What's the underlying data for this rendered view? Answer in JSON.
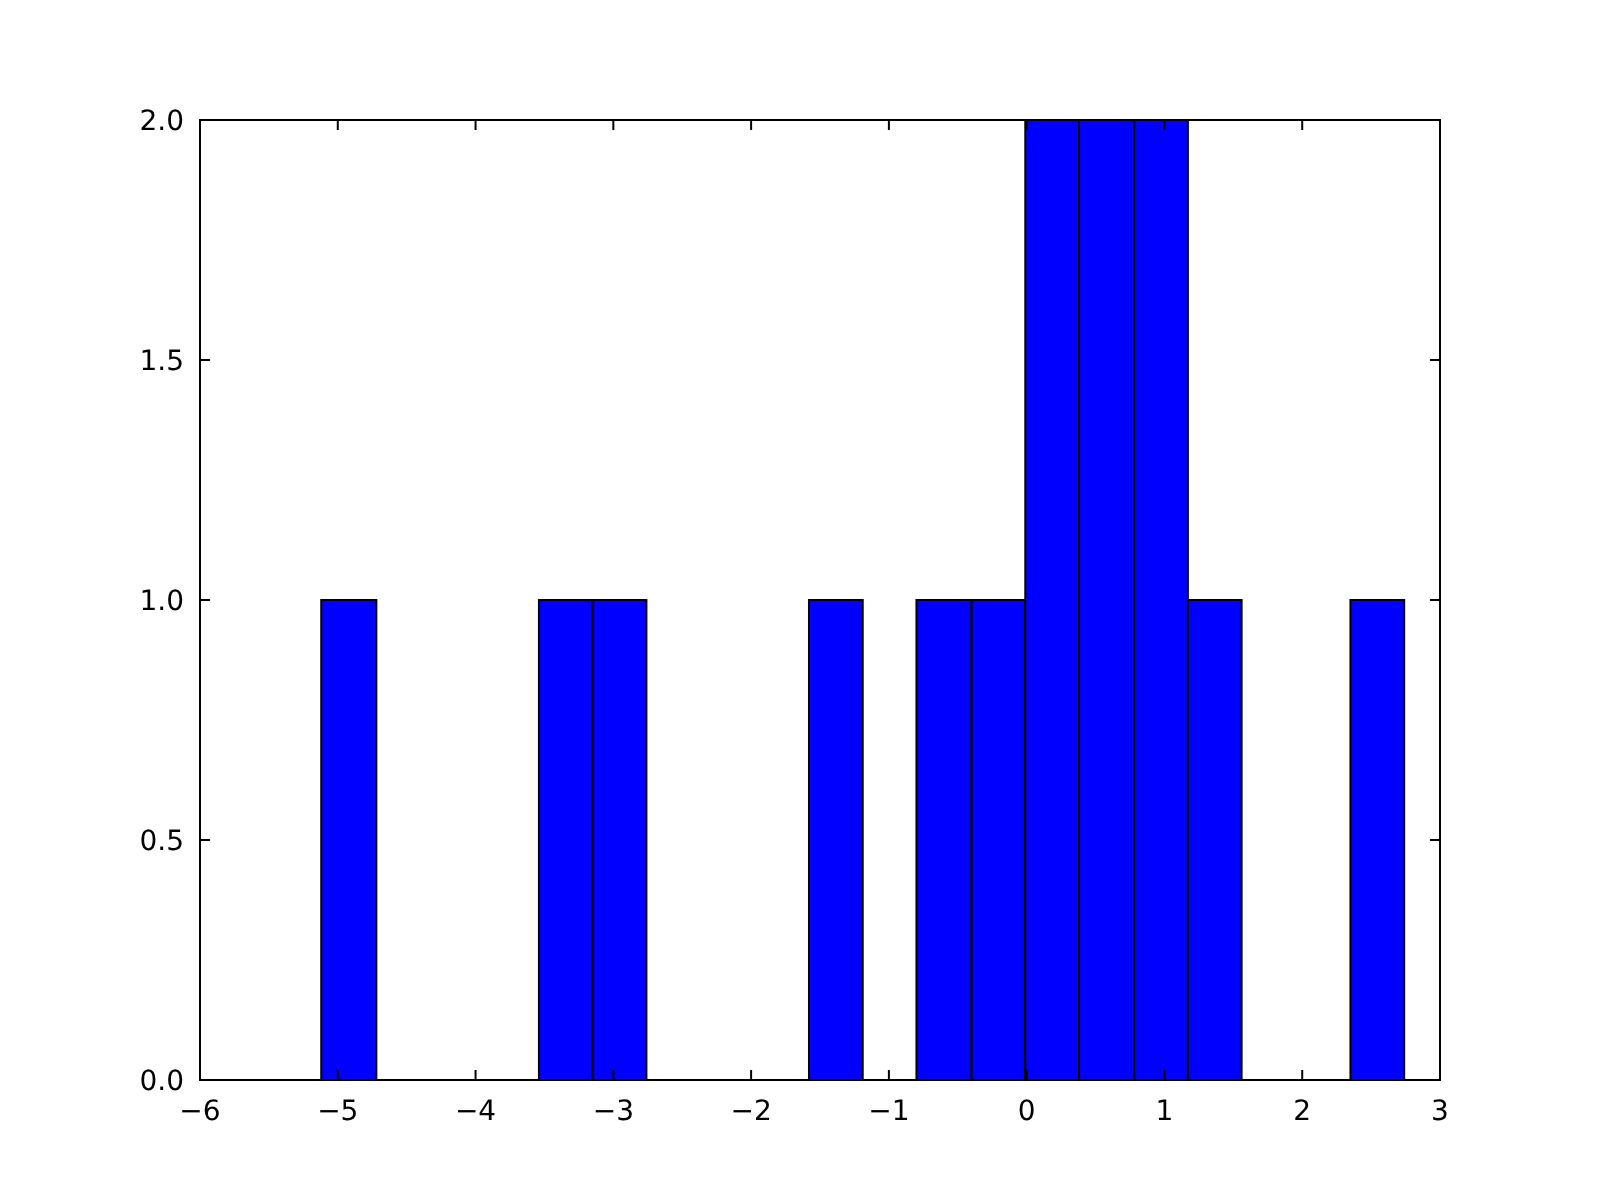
{
  "chart_data": {
    "type": "histogram",
    "color": "#0000ff",
    "bins": [
      -5.12,
      -4.72,
      -3.54,
      -3.15,
      -2.76,
      -1.58,
      -1.19,
      -0.8,
      -0.4,
      -0.01,
      0.38,
      0.78,
      1.17,
      1.56,
      2.35,
      2.74
    ],
    "values": [
      1,
      0,
      1,
      1,
      0,
      1,
      0,
      1,
      1,
      2,
      2,
      2,
      1,
      0,
      1
    ],
    "xlim": [
      -6,
      3
    ],
    "xticks": [
      {
        "value": -6,
        "label": "−6"
      },
      {
        "value": -5,
        "label": "−5"
      },
      {
        "value": -4,
        "label": "−4"
      },
      {
        "value": -3,
        "label": "−3"
      },
      {
        "value": -2,
        "label": "−2"
      },
      {
        "value": -1,
        "label": "−1"
      },
      0,
      1,
      2,
      3
    ],
    "ylim": [
      0,
      2
    ],
    "yticks": [
      {
        "value": 0,
        "label": "0.0"
      },
      {
        "value": 0.5,
        "label": "0.5"
      },
      {
        "value": 1,
        "label": "1.0"
      },
      {
        "value": 1.5,
        "label": "1.5"
      },
      {
        "value": 2,
        "label": "2.0"
      }
    ],
    "grid": false
  }
}
